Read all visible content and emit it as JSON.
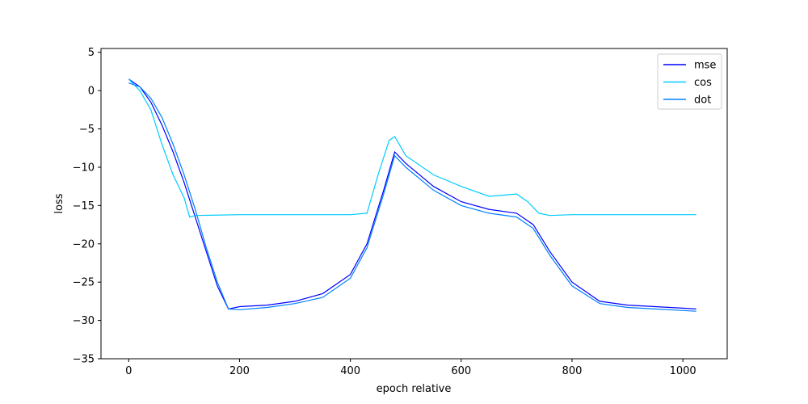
{
  "chart_data": {
    "type": "line",
    "xlabel": "epoch relative",
    "ylabel": "loss",
    "xlim": [
      -50,
      1080
    ],
    "ylim": [
      -35,
      5.5
    ],
    "xticks": [
      0,
      200,
      400,
      600,
      800,
      1000
    ],
    "yticks": [
      5,
      0,
      -5,
      -10,
      -15,
      -20,
      -25,
      -30,
      -35
    ],
    "grid": false,
    "legend_position": "top-right",
    "series": [
      {
        "name": "mse",
        "color": "#0000ff",
        "x": [
          0,
          20,
          40,
          60,
          80,
          100,
          120,
          140,
          160,
          180,
          200,
          250,
          300,
          350,
          400,
          430,
          460,
          480,
          500,
          550,
          600,
          650,
          700,
          730,
          760,
          800,
          850,
          900,
          950,
          1000,
          1024
        ],
        "y": [
          1.5,
          0.5,
          -1.5,
          -4.5,
          -8.0,
          -12.0,
          -16.5,
          -21.0,
          -25.5,
          -28.5,
          -28.2,
          -28.0,
          -27.5,
          -26.5,
          -24.0,
          -20.0,
          -13.0,
          -8.0,
          -9.5,
          -12.5,
          -14.5,
          -15.5,
          -16.0,
          -17.5,
          -21.0,
          -25.0,
          -27.5,
          -28.0,
          -28.2,
          -28.4,
          -28.5
        ]
      },
      {
        "name": "cos",
        "color": "#00ccff",
        "x": [
          0,
          20,
          40,
          60,
          80,
          100,
          110,
          120,
          200,
          300,
          400,
          430,
          450,
          470,
          480,
          500,
          550,
          600,
          650,
          700,
          720,
          740,
          760,
          800,
          900,
          1000,
          1024
        ],
        "y": [
          1.5,
          0.0,
          -2.5,
          -7.0,
          -11.0,
          -14.0,
          -16.5,
          -16.3,
          -16.2,
          -16.2,
          -16.2,
          -16.0,
          -11.0,
          -6.5,
          -6.0,
          -8.5,
          -11.0,
          -12.5,
          -13.8,
          -13.5,
          -14.5,
          -16.0,
          -16.3,
          -16.2,
          -16.2,
          -16.2,
          -16.2
        ]
      },
      {
        "name": "dot",
        "color": "#0080ff",
        "x": [
          0,
          20,
          40,
          60,
          80,
          100,
          120,
          140,
          160,
          180,
          200,
          250,
          300,
          350,
          400,
          430,
          460,
          480,
          500,
          550,
          600,
          650,
          700,
          730,
          760,
          800,
          850,
          900,
          950,
          1000,
          1024
        ],
        "y": [
          1.0,
          0.5,
          -1.0,
          -3.5,
          -7.0,
          -11.0,
          -15.5,
          -20.5,
          -25.0,
          -28.5,
          -28.6,
          -28.3,
          -27.8,
          -27.0,
          -24.5,
          -20.5,
          -13.5,
          -8.5,
          -10.0,
          -13.0,
          -15.0,
          -16.0,
          -16.5,
          -18.0,
          -21.5,
          -25.5,
          -27.8,
          -28.3,
          -28.5,
          -28.7,
          -28.8
        ]
      }
    ]
  }
}
